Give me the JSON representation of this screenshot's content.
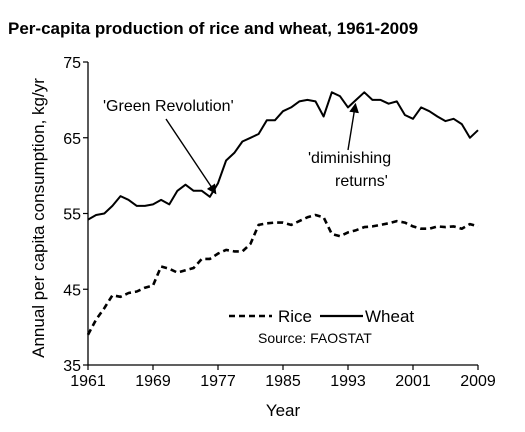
{
  "chart_data": {
    "type": "line",
    "title": "Per-capita production of rice and wheat, 1961-2009",
    "xlabel": "Year",
    "ylabel": "Annual per capita consumption, kg/yr",
    "xlim": [
      1961,
      2009
    ],
    "ylim": [
      35,
      75
    ],
    "x_ticks": [
      1961,
      1969,
      1977,
      1985,
      1993,
      2001,
      2009
    ],
    "y_ticks": [
      35,
      45,
      55,
      65,
      75
    ],
    "grid": false,
    "legend": {
      "position": "bottom-center",
      "source": "Source: FAOSTAT"
    },
    "x": [
      1961,
      1962,
      1963,
      1964,
      1965,
      1966,
      1967,
      1968,
      1969,
      1970,
      1971,
      1972,
      1973,
      1974,
      1975,
      1976,
      1977,
      1978,
      1979,
      1980,
      1981,
      1982,
      1983,
      1984,
      1985,
      1986,
      1987,
      1988,
      1989,
      1990,
      1991,
      1992,
      1993,
      1994,
      1995,
      1996,
      1997,
      1998,
      1999,
      2000,
      2001,
      2002,
      2003,
      2004,
      2005,
      2006,
      2007,
      2008,
      2009
    ],
    "series": [
      {
        "name": "Wheat",
        "style": "solid",
        "color": "#000000",
        "values": [
          54.2,
          54.8,
          55.0,
          56.0,
          57.3,
          56.8,
          56.0,
          56.0,
          56.2,
          56.8,
          56.2,
          58.0,
          58.8,
          58.0,
          58.0,
          57.2,
          59.0,
          62.0,
          63.0,
          64.5,
          65.0,
          65.5,
          67.3,
          67.3,
          68.5,
          69.0,
          69.8,
          70.0,
          69.8,
          67.8,
          71.0,
          70.5,
          69.0,
          70.0,
          71.0,
          70.0,
          70.0,
          69.5,
          69.8,
          68.0,
          67.5,
          69.0,
          68.5,
          67.8,
          67.2,
          67.5,
          66.8,
          65.0,
          66.0
        ]
      },
      {
        "name": "Rice",
        "style": "dashed",
        "color": "#000000",
        "values": [
          39.0,
          41.0,
          42.5,
          44.2,
          44.0,
          44.5,
          44.7,
          45.2,
          45.5,
          48.0,
          47.7,
          47.2,
          47.5,
          47.8,
          49.0,
          49.0,
          49.7,
          50.2,
          50.0,
          50.0,
          51.0,
          53.5,
          53.7,
          53.8,
          53.8,
          53.5,
          54.0,
          54.5,
          54.8,
          54.5,
          52.3,
          52.0,
          52.5,
          52.8,
          53.2,
          53.3,
          53.5,
          53.7,
          54.0,
          53.8,
          53.3,
          53.0,
          53.0,
          53.3,
          53.2,
          53.3,
          53.0,
          53.6,
          53.3
        ]
      }
    ],
    "annotations": [
      {
        "lines": [
          "'Green Revolution'"
        ],
        "target": [
          1977,
          57.2
        ]
      },
      {
        "lines": [
          "'diminishing",
          "returns'"
        ],
        "target": [
          1994,
          70.0
        ]
      }
    ]
  }
}
